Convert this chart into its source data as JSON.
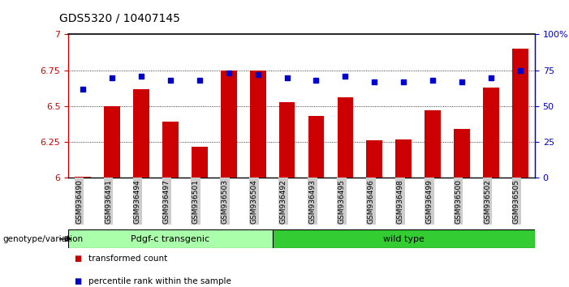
{
  "title": "GDS5320 / 10407145",
  "samples": [
    "GSM936490",
    "GSM936491",
    "GSM936494",
    "GSM936497",
    "GSM936501",
    "GSM936503",
    "GSM936504",
    "GSM936492",
    "GSM936493",
    "GSM936495",
    "GSM936496",
    "GSM936498",
    "GSM936499",
    "GSM936500",
    "GSM936502",
    "GSM936505"
  ],
  "red_values": [
    6.01,
    6.5,
    6.62,
    6.39,
    6.22,
    6.75,
    6.75,
    6.53,
    6.43,
    6.56,
    6.26,
    6.27,
    6.47,
    6.34,
    6.63,
    6.9
  ],
  "blue_values": [
    62,
    70,
    71,
    68,
    68,
    73,
    72,
    70,
    68,
    71,
    67,
    67,
    68,
    67,
    70,
    75
  ],
  "ylim_left": [
    6.0,
    7.0
  ],
  "ylim_right": [
    0,
    100
  ],
  "yticks_left": [
    6.0,
    6.25,
    6.5,
    6.75,
    7.0
  ],
  "ytick_labels_left": [
    "6",
    "6.25",
    "6.5",
    "6.75",
    "7"
  ],
  "yticks_right": [
    0,
    25,
    50,
    75,
    100
  ],
  "ytick_labels_right": [
    "0",
    "25",
    "50",
    "75",
    "100%"
  ],
  "gridlines": [
    6.25,
    6.5,
    6.75
  ],
  "group1_label": "Pdgf-c transgenic",
  "group1_count": 7,
  "group2_label": "wild type",
  "group2_count": 9,
  "genotype_label": "genotype/variation",
  "legend_red": "transformed count",
  "legend_blue": "percentile rank within the sample",
  "bar_color": "#cc0000",
  "dot_color": "#0000cc",
  "group1_bg": "#aaffaa",
  "group2_bg": "#33cc33",
  "axis_color_left": "#cc0000",
  "axis_color_right": "#0000cc",
  "tick_label_bg": "#cccccc",
  "top_border_color": "#000000"
}
